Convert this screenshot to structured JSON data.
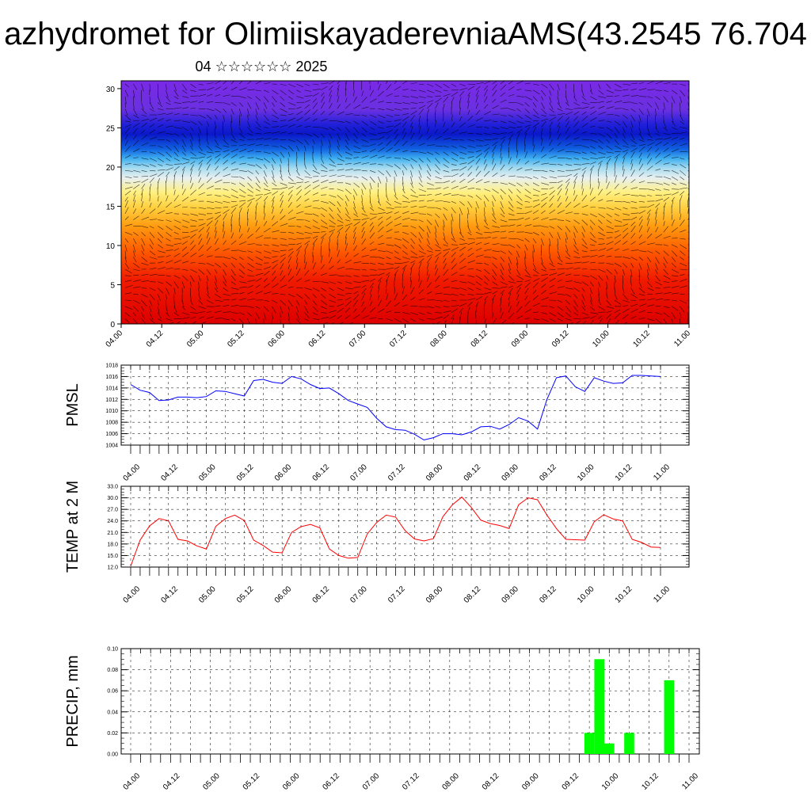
{
  "title": "azhydromet for OlimiiskayaderevniaAMS(43.2545 76.704",
  "subtitle": "04 ☆☆☆☆☆☆ 2025",
  "chart_data": [
    {
      "type": "heatmap",
      "name": "cross-section",
      "x_ticks": [
        "04.00",
        "04.12",
        "05.00",
        "05.12",
        "06.00",
        "06.12",
        "07.00",
        "07.12",
        "08.00",
        "08.12",
        "09.00",
        "09.12",
        "10.00",
        "10.12",
        "11.00"
      ],
      "y_ticks": [
        "0",
        "5",
        "10",
        "15",
        "20",
        "25",
        "30"
      ],
      "ylim": [
        0,
        31
      ],
      "colors": {
        "low": "#e60000",
        "mid": "#fde24a",
        "high_cold": "#1020c8",
        "top": "#7a2ae6"
      },
      "overlay": "wind vectors"
    },
    {
      "type": "line",
      "ylabel": "PMSL",
      "color": "#0000ff",
      "ylim": [
        1004,
        1018
      ],
      "y_ticks": [
        "1004",
        "1006",
        "1008",
        "1010",
        "1012",
        "1014",
        "1016",
        "1018"
      ],
      "x_ticks": [
        "04.00",
        "04.12",
        "05.00",
        "05.12",
        "06.00",
        "06.12",
        "07.00",
        "07.12",
        "08.00",
        "08.12",
        "09.00",
        "09.12",
        "10.00",
        "10.12",
        "11.00"
      ],
      "x": [
        0,
        3,
        6,
        9,
        12,
        15,
        18,
        21,
        24,
        27,
        30,
        33,
        36,
        39,
        42,
        45,
        48,
        51,
        54,
        57,
        60,
        63,
        66,
        69,
        72,
        75,
        78,
        81,
        84,
        87,
        90,
        93,
        96,
        99,
        102,
        105,
        108,
        111,
        114,
        117,
        120,
        123,
        126,
        129,
        132,
        135,
        138,
        141,
        144,
        147,
        150,
        153,
        156,
        159,
        162,
        165,
        168
      ],
      "values": [
        1014.6,
        1013.6,
        1013.2,
        1011.8,
        1011.9,
        1012.4,
        1012.4,
        1012.3,
        1012.5,
        1013.5,
        1013.4,
        1013.0,
        1012.6,
        1015.3,
        1015.5,
        1015.0,
        1014.8,
        1016.0,
        1015.6,
        1014.6,
        1013.9,
        1014.0,
        1013.0,
        1011.8,
        1011.2,
        1010.6,
        1008.7,
        1007.2,
        1006.7,
        1006.6,
        1005.9,
        1004.9,
        1005.3,
        1006.0,
        1006.0,
        1005.8,
        1006.3,
        1007.2,
        1007.3,
        1006.8,
        1007.6,
        1008.8,
        1008.2,
        1006.8,
        1012.0,
        1015.8,
        1016.1,
        1014.2,
        1013.4,
        1015.8,
        1015.2,
        1014.8,
        1014.9,
        1016.2,
        1016.2,
        1016.1,
        1016.0
      ]
    },
    {
      "type": "line",
      "ylabel": "TEMP at 2 M",
      "color": "#ff0000",
      "ylim": [
        12,
        33
      ],
      "y_ticks": [
        "12.0",
        "15.0",
        "18.0",
        "21.0",
        "24.0",
        "27.0",
        "30.0",
        "33.0"
      ],
      "x_ticks": [
        "04.00",
        "04.12",
        "05.00",
        "05.12",
        "06.00",
        "06.12",
        "07.00",
        "07.12",
        "08.00",
        "08.12",
        "09.00",
        "09.12",
        "10.00",
        "10.12",
        "11.00"
      ],
      "x": [
        0,
        3,
        6,
        9,
        12,
        15,
        18,
        21,
        24,
        27,
        30,
        33,
        36,
        39,
        42,
        45,
        48,
        51,
        54,
        57,
        60,
        63,
        66,
        69,
        72,
        75,
        78,
        81,
        84,
        87,
        90,
        93,
        96,
        99,
        102,
        105,
        108,
        111,
        114,
        117,
        120,
        123,
        126,
        129,
        132,
        135,
        138,
        141,
        144,
        147,
        150,
        153,
        156,
        159,
        162,
        165,
        168
      ],
      "values": [
        12.2,
        19.0,
        22.7,
        24.6,
        24.0,
        19.2,
        18.8,
        17.5,
        16.7,
        22.6,
        24.6,
        25.5,
        24.1,
        19.0,
        17.6,
        15.9,
        15.7,
        21.0,
        22.5,
        23.1,
        22.2,
        16.7,
        15.0,
        14.3,
        14.5,
        20.6,
        23.6,
        25.5,
        25.0,
        21.5,
        19.3,
        18.8,
        19.4,
        25.1,
        28.2,
        30.2,
        27.5,
        24.2,
        23.3,
        22.8,
        22.0,
        28.2,
        30.0,
        29.5,
        25.5,
        22.0,
        19.2,
        19.1,
        19.0,
        23.8,
        25.6,
        24.5,
        24.0,
        19.2,
        18.4,
        17.2,
        17.1
      ]
    },
    {
      "type": "bar",
      "ylabel": "PRECIP, mm",
      "color": "#00ff00",
      "ylim": [
        0,
        0.1
      ],
      "y_ticks": [
        "0.00",
        "0.02",
        "0.04",
        "0.06",
        "0.08",
        "0.10"
      ],
      "x_ticks": [
        "04.00",
        "04.12",
        "05.00",
        "05.12",
        "06.00",
        "06.12",
        "07.00",
        "07.12",
        "08.00",
        "08.12",
        "09.00",
        "09.12",
        "10.00",
        "10.12",
        "11.00"
      ],
      "x": [
        138,
        141,
        144,
        150,
        162
      ],
      "values": [
        0.02,
        0.09,
        0.01,
        0.02,
        0.07
      ]
    }
  ]
}
